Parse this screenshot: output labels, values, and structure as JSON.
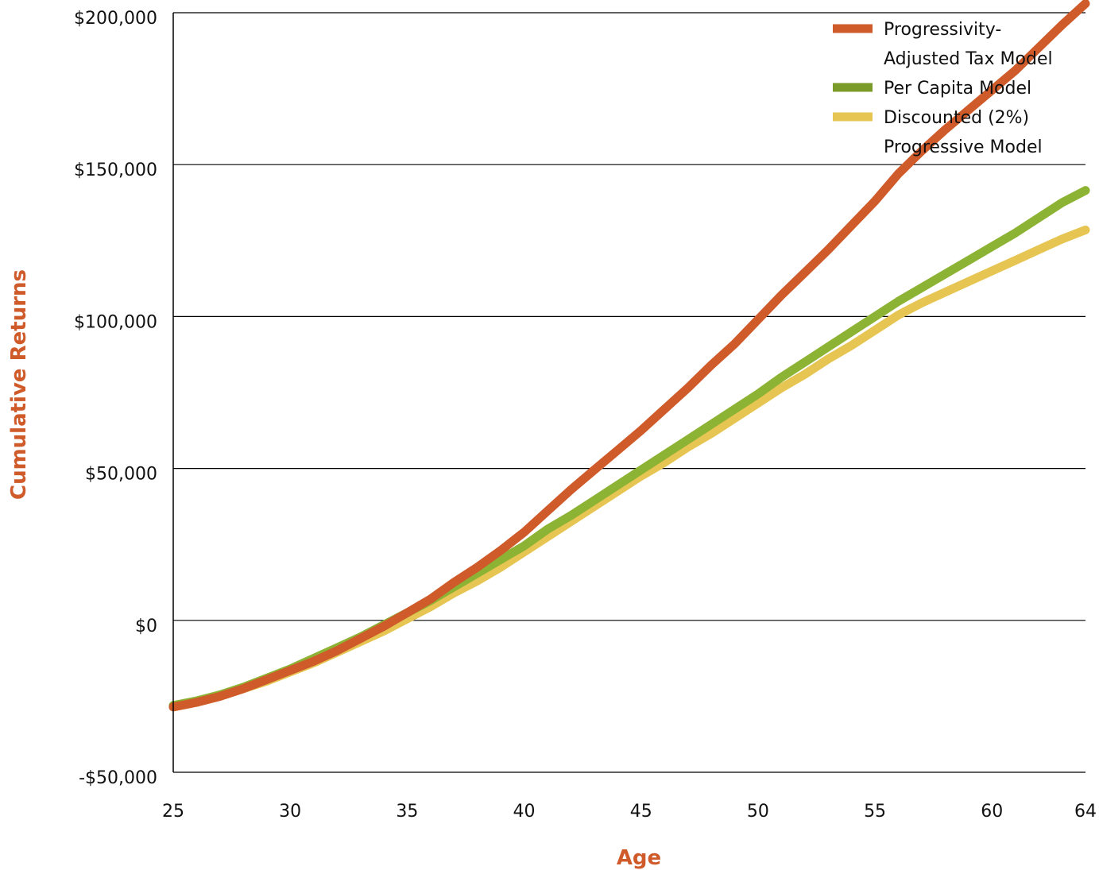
{
  "chart_data": {
    "type": "line",
    "title": "",
    "xlabel": "Age",
    "ylabel": "Cumulative Returns",
    "xlim": [
      25,
      64
    ],
    "ylim": [
      -50000,
      200000
    ],
    "x_ticks": [
      25,
      30,
      35,
      40,
      45,
      50,
      55,
      60,
      64
    ],
    "x_tick_labels": [
      "25",
      "30",
      "35",
      "40",
      "45",
      "50",
      "55",
      "60",
      "64"
    ],
    "y_ticks": [
      -50000,
      0,
      50000,
      100000,
      150000,
      200000
    ],
    "y_tick_labels": [
      "-$50,000",
      "$0",
      "$50,000",
      "$100,000",
      "$150,000",
      "$200,000"
    ],
    "grid": "horizontal",
    "legend_position": "top-right",
    "x": [
      25,
      26,
      27,
      28,
      29,
      30,
      31,
      32,
      33,
      34,
      35,
      36,
      37,
      38,
      39,
      40,
      41,
      42,
      43,
      44,
      45,
      46,
      47,
      48,
      49,
      50,
      51,
      52,
      53,
      54,
      55,
      56,
      57,
      58,
      59,
      60,
      61,
      62,
      63,
      64
    ],
    "series": [
      {
        "name": "Progressivity-Adjusted Tax Model",
        "name_lines": [
          "Progressivity-",
          "Adjusted Tax Model"
        ],
        "color": "#cf5a2a",
        "values": [
          -28500,
          -27000,
          -25000,
          -22500,
          -19500,
          -16500,
          -13500,
          -10000,
          -6000,
          -2000,
          2500,
          7000,
          12500,
          17500,
          23000,
          29000,
          36000,
          43000,
          49500,
          56000,
          62500,
          69500,
          76500,
          84000,
          91000,
          99000,
          107000,
          114500,
          122000,
          130000,
          138000,
          147000,
          154500,
          161500,
          168000,
          174500,
          181000,
          188500,
          196000,
          203000
        ]
      },
      {
        "name": "Per Capita Model",
        "name_lines": [
          "Per Capita Model"
        ],
        "color": "#8db335",
        "legend_color": "#7a9a2a",
        "values": [
          -28000,
          -26500,
          -24500,
          -22000,
          -19000,
          -16000,
          -12500,
          -9000,
          -5500,
          -1500,
          2500,
          6500,
          11000,
          15500,
          20000,
          24500,
          30000,
          34500,
          39500,
          44500,
          49500,
          54500,
          59500,
          64500,
          69500,
          74500,
          80000,
          85000,
          90000,
          95000,
          100000,
          105000,
          109500,
          114000,
          118500,
          123000,
          127500,
          132500,
          137500,
          141500
        ]
      },
      {
        "name": "Discounted (2%) Progressive Model",
        "name_lines": [
          "Discounted (2%)",
          "Progressive Model"
        ],
        "color": "#e6c552",
        "values": [
          -28500,
          -27000,
          -25000,
          -22500,
          -20000,
          -17000,
          -14000,
          -10500,
          -7000,
          -3500,
          500,
          4500,
          9000,
          13000,
          17500,
          22500,
          27500,
          32500,
          37500,
          42500,
          47500,
          52000,
          57000,
          61500,
          66500,
          71500,
          76500,
          81000,
          86000,
          90500,
          95500,
          100500,
          104500,
          108000,
          111500,
          115000,
          118500,
          122000,
          125500,
          128500
        ]
      }
    ]
  }
}
